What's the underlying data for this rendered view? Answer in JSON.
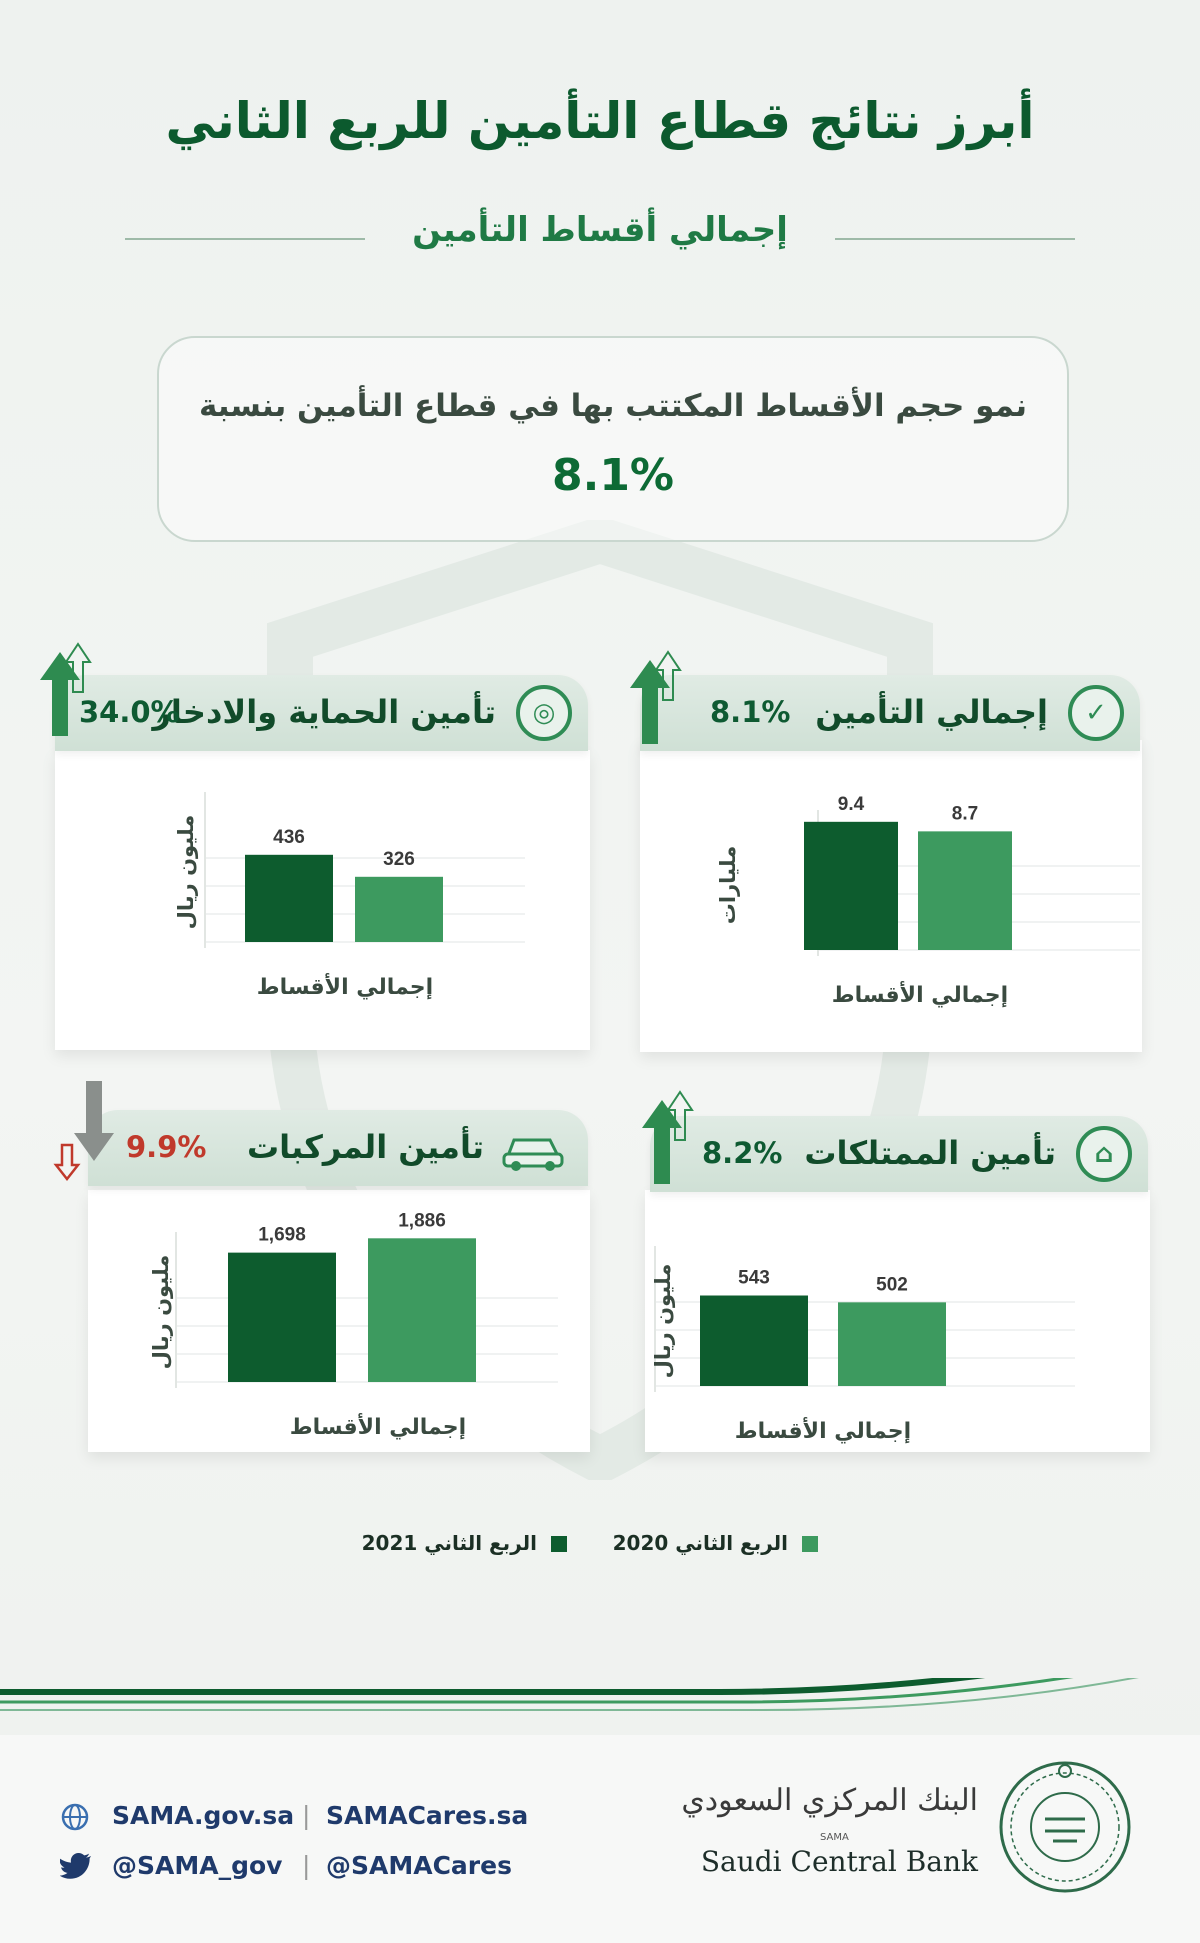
{
  "title": "أبرز نتائج قطاع التأمين للربع الثاني",
  "subtitle": "إجمالي أقساط التأمين",
  "intro": {
    "text": "نمو حجم الأقساط المكتتب بها في قطاع التأمين بنسبة",
    "value": "8.1%"
  },
  "colors": {
    "q2_2021": "#0d5c2e",
    "q2_2020": "#3d9a5f",
    "up": "#2e8b50",
    "down": "#c0392b"
  },
  "chart_data": [
    {
      "type": "bar",
      "title": "إجمالي التأمين",
      "change": "8.1%",
      "trend": "up",
      "ylabel": "مليارات",
      "xlabel": "إجمالي الأقساط",
      "series": [
        {
          "name": "الربع الثاني 2021",
          "values": [
            9.4
          ],
          "labels": [
            "9.4"
          ]
        },
        {
          "name": "الربع الثاني 2020",
          "values": [
            8.7
          ],
          "labels": [
            "8.7"
          ]
        }
      ],
      "ylim": [
        0,
        11
      ]
    },
    {
      "type": "bar",
      "title": "تأمين الحماية والادخار",
      "change": "34.0%",
      "trend": "up",
      "ylabel": "مليون ريال",
      "xlabel": "إجمالي الأقساط",
      "series": [
        {
          "name": "الربع الثاني 2021",
          "values": [
            436
          ],
          "labels": [
            "436"
          ]
        },
        {
          "name": "الربع الثاني 2020",
          "values": [
            326
          ],
          "labels": [
            "326"
          ]
        }
      ],
      "ylim": [
        0,
        800
      ]
    },
    {
      "type": "bar",
      "title": "تأمين الممتلكات",
      "change": "8.2%",
      "trend": "up",
      "ylabel": "مليون ريال",
      "xlabel": "إجمالي الأقساط",
      "series": [
        {
          "name": "الربع الثاني 2021",
          "values": [
            543
          ],
          "labels": [
            "543"
          ]
        },
        {
          "name": "الربع الثاني 2020",
          "values": [
            502
          ],
          "labels": [
            "502"
          ]
        }
      ],
      "ylim": [
        0,
        900
      ]
    },
    {
      "type": "bar",
      "title": "تأمين المركبات",
      "change": "9.9%",
      "trend": "down",
      "ylabel": "مليون ريال",
      "xlabel": "إجمالي الأقساط",
      "series": [
        {
          "name": "الربع الثاني 2021",
          "values": [
            1698
          ],
          "labels": [
            "1,698"
          ]
        },
        {
          "name": "الربع الثاني 2020",
          "values": [
            1886
          ],
          "labels": [
            "1,886"
          ]
        }
      ],
      "ylim": [
        0,
        2100
      ]
    }
  ],
  "legend": [
    {
      "label": "الربع الثاني 2020"
    },
    {
      "label": "الربع الثاني 2021"
    }
  ],
  "footer": {
    "website": "SAMA.gov.sa",
    "website2": "SAMACares.sa",
    "twitter": "@SAMA_gov",
    "twitter2": "@SAMACares",
    "bank_ar": "البنك المركزي السعودي",
    "bank_small": "SAMA",
    "bank_en": "Saudi Central Bank",
    "icons": [
      "globe-icon",
      "twitter-icon",
      "sama-seal-icon"
    ]
  }
}
